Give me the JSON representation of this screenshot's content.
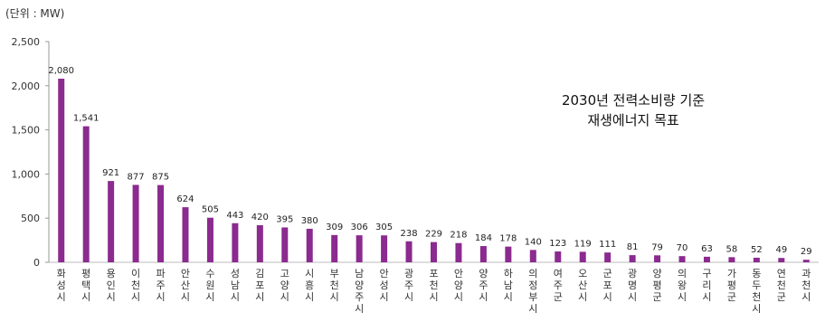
{
  "chart_data": {
    "type": "bar",
    "unit_label": "(단위 : MW)",
    "annotation": [
      "2030년 전력소비량 기준",
      "재생에너지 목표"
    ],
    "categories": [
      "화성시",
      "평택시",
      "용인시",
      "이천시",
      "파주시",
      "안산시",
      "수원시",
      "성남시",
      "김포시",
      "고양시",
      "시흥시",
      "부천시",
      "남양주시",
      "안성시",
      "광주시",
      "포천시",
      "안양시",
      "양주시",
      "하남시",
      "의정부시",
      "여주군",
      "오산시",
      "군포시",
      "광명시",
      "양평군",
      "의왕시",
      "구리시",
      "가평군",
      "동두천시",
      "연천군",
      "과천시"
    ],
    "values": [
      2080,
      1541,
      921,
      877,
      875,
      624,
      505,
      443,
      420,
      395,
      380,
      309,
      306,
      305,
      238,
      229,
      218,
      184,
      178,
      140,
      123,
      119,
      111,
      81,
      79,
      70,
      63,
      58,
      52,
      49,
      29
    ],
    "value_labels": [
      "2,080",
      "1,541",
      "921",
      "877",
      "875",
      "624",
      "505",
      "443",
      "420",
      "395",
      "380",
      "309",
      "306",
      "305",
      "238",
      "229",
      "218",
      "184",
      "178",
      "140",
      "123",
      "119",
      "111",
      "81",
      "79",
      "70",
      "63",
      "58",
      "52",
      "49",
      "29"
    ],
    "ylim": [
      0,
      2500
    ],
    "yticks": [
      0,
      500,
      1000,
      1500,
      2000,
      2500
    ],
    "ytick_labels": [
      "0",
      "500",
      "1,000",
      "1,500",
      "2,000",
      "2,500"
    ],
    "bar_color": "#8b2a8f",
    "grid": false
  }
}
